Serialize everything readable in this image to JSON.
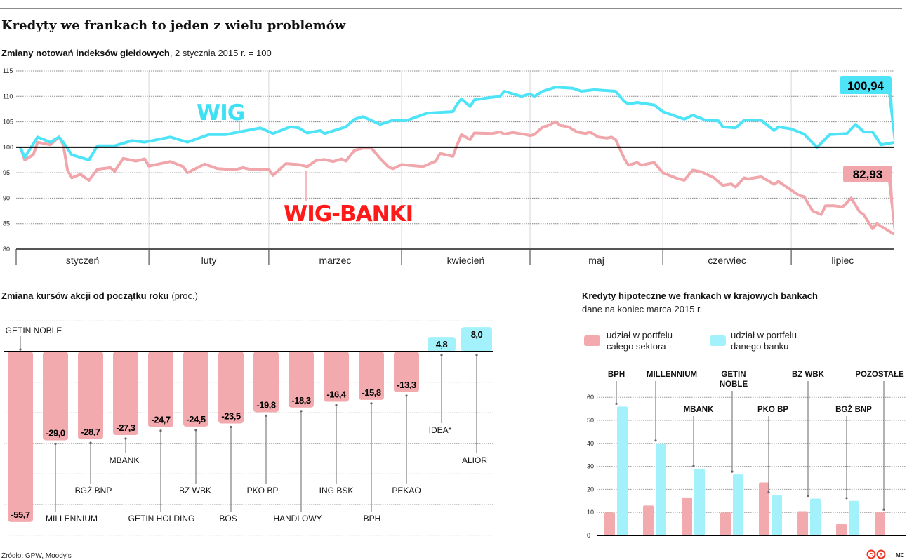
{
  "header": {
    "title": "Kredyty we frankach to jeden z wielu problemów"
  },
  "footer": {
    "source": "Źródło: GPW, Moody's",
    "author": "MC"
  },
  "colors": {
    "wig": "#4ee4f7",
    "wig_banki": "#f0a6aa",
    "wig_label": "#3ee0f4",
    "wig_banki_label": "#ff1a1a",
    "negative": "#f2aaae",
    "positive": "#a3f1fb",
    "sector": "#f2aaae",
    "bank": "#a3f1fb"
  },
  "chart_data": [
    {
      "type": "line",
      "title": "Zmiany notowań indeksów giełdowych",
      "subtitle": ", 2 stycznia 2015 r. = 100",
      "ylim": [
        80,
        115
      ],
      "yticks": [
        80,
        85,
        90,
        95,
        100,
        105,
        110,
        115
      ],
      "baseline": 100,
      "grid": true,
      "x_range": [
        "2015-01-01",
        "2015-07-25"
      ],
      "months": [
        "styczeń",
        "luty",
        "marzec",
        "kwiecień",
        "maj",
        "czerwiec",
        "lipiec"
      ],
      "series": [
        {
          "name": "WIG",
          "end_label": "100,94",
          "points": [
            [
              "2015-01-02",
              100
            ],
            [
              "2015-01-03",
              98
            ],
            [
              "2015-01-06",
              102
            ],
            [
              "2015-01-09",
              101
            ],
            [
              "2015-01-11",
              102
            ],
            [
              "2015-01-12",
              101
            ],
            [
              "2015-01-14",
              98.5
            ],
            [
              "2015-01-18",
              97.5
            ],
            [
              "2015-01-20",
              100.3
            ],
            [
              "2015-01-24",
              100.3
            ],
            [
              "2015-01-28",
              101.3
            ],
            [
              "2015-01-31",
              101
            ],
            [
              "2015-02-06",
              102
            ],
            [
              "2015-02-10",
              101
            ],
            [
              "2015-02-15",
              102.5
            ],
            [
              "2015-02-19",
              102.5
            ],
            [
              "2015-02-22",
              103
            ],
            [
              "2015-02-27",
              103.8
            ],
            [
              "2015-03-02",
              102.7
            ],
            [
              "2015-03-06",
              104
            ],
            [
              "2015-03-08",
              103.8
            ],
            [
              "2015-03-10",
              102.8
            ],
            [
              "2015-03-13",
              103.3
            ],
            [
              "2015-03-14",
              102.7
            ],
            [
              "2015-03-19",
              104
            ],
            [
              "2015-03-21",
              105.5
            ],
            [
              "2015-03-23",
              106
            ],
            [
              "2015-03-27",
              104.5
            ],
            [
              "2015-03-30",
              105.3
            ],
            [
              "2015-04-02",
              105.2
            ],
            [
              "2015-04-07",
              106.7
            ],
            [
              "2015-04-13",
              107
            ],
            [
              "2015-04-14",
              108.5
            ],
            [
              "2015-04-15",
              109.5
            ],
            [
              "2015-04-17",
              108
            ],
            [
              "2015-04-18",
              109.3
            ],
            [
              "2015-04-21",
              109.7
            ],
            [
              "2015-04-24",
              110
            ],
            [
              "2015-04-25",
              111
            ],
            [
              "2015-04-29",
              110
            ],
            [
              "2015-05-01",
              110.5
            ],
            [
              "2015-05-02",
              110
            ],
            [
              "2015-05-04",
              111
            ],
            [
              "2015-05-07",
              111.8
            ],
            [
              "2015-05-11",
              111.6
            ],
            [
              "2015-05-13",
              111
            ],
            [
              "2015-05-16",
              111.3
            ],
            [
              "2015-05-21",
              111
            ],
            [
              "2015-05-23",
              109
            ],
            [
              "2015-05-24",
              108.5
            ],
            [
              "2015-05-26",
              108.8
            ],
            [
              "2015-05-30",
              108.3
            ],
            [
              "2015-06-01",
              107
            ],
            [
              "2015-06-06",
              105.5
            ],
            [
              "2015-06-08",
              106.3
            ],
            [
              "2015-06-11",
              105.3
            ],
            [
              "2015-06-14",
              105.2
            ],
            [
              "2015-06-15",
              104
            ],
            [
              "2015-06-18",
              103.8
            ],
            [
              "2015-06-20",
              105.3
            ],
            [
              "2015-06-24",
              105.3
            ],
            [
              "2015-06-27",
              103.3
            ],
            [
              "2015-06-28",
              104
            ],
            [
              "2015-07-01",
              103.6
            ],
            [
              "2015-07-04",
              102.6
            ],
            [
              "2015-07-07",
              100
            ],
            [
              "2015-07-10",
              102.5
            ],
            [
              "2015-07-14",
              102.7
            ],
            [
              "2015-07-16",
              104.5
            ],
            [
              "2015-07-18",
              103
            ],
            [
              "2015-07-20",
              103
            ],
            [
              "2015-07-22",
              100.5
            ],
            [
              "2015-07-25",
              100.94
            ]
          ]
        },
        {
          "name": "WIG-BANKI",
          "end_label": "82,93",
          "points": [
            [
              "2015-01-02",
              100
            ],
            [
              "2015-01-03",
              97.5
            ],
            [
              "2015-01-05",
              98.5
            ],
            [
              "2015-01-06",
              101
            ],
            [
              "2015-01-09",
              100.5
            ],
            [
              "2015-01-11",
              102
            ],
            [
              "2015-01-12",
              100.5
            ],
            [
              "2015-01-13",
              95.5
            ],
            [
              "2015-01-14",
              94
            ],
            [
              "2015-01-16",
              94.7
            ],
            [
              "2015-01-18",
              93.5
            ],
            [
              "2015-01-20",
              95.7
            ],
            [
              "2015-01-23",
              96
            ],
            [
              "2015-01-24",
              95.3
            ],
            [
              "2015-01-26",
              97.8
            ],
            [
              "2015-01-29",
              97.3
            ],
            [
              "2015-01-31",
              97.7
            ],
            [
              "2015-02-01",
              96.3
            ],
            [
              "2015-02-06",
              97.2
            ],
            [
              "2015-02-09",
              96.2
            ],
            [
              "2015-02-10",
              95
            ],
            [
              "2015-02-14",
              96.7
            ],
            [
              "2015-02-17",
              95.8
            ],
            [
              "2015-02-21",
              95.6
            ],
            [
              "2015-02-23",
              96
            ],
            [
              "2015-02-25",
              95.6
            ],
            [
              "2015-03-01",
              95.7
            ],
            [
              "2015-03-02",
              94.5
            ],
            [
              "2015-03-05",
              96.8
            ],
            [
              "2015-03-08",
              96.6
            ],
            [
              "2015-03-10",
              96.2
            ],
            [
              "2015-03-12",
              97.4
            ],
            [
              "2015-03-14",
              97.6
            ],
            [
              "2015-03-16",
              97.2
            ],
            [
              "2015-03-18",
              97.7
            ],
            [
              "2015-03-19",
              97.3
            ],
            [
              "2015-03-21",
              99.4
            ],
            [
              "2015-03-23",
              99.8
            ],
            [
              "2015-03-25",
              99.8
            ],
            [
              "2015-03-27",
              97.8
            ],
            [
              "2015-03-29",
              96.1
            ],
            [
              "2015-03-30",
              95.8
            ],
            [
              "2015-04-01",
              96.6
            ],
            [
              "2015-04-06",
              96.2
            ],
            [
              "2015-04-09",
              97.3
            ],
            [
              "2015-04-10",
              98.8
            ],
            [
              "2015-04-13",
              98.2
            ],
            [
              "2015-04-14",
              100.5
            ],
            [
              "2015-04-15",
              102.5
            ],
            [
              "2015-04-17",
              101.5
            ],
            [
              "2015-04-18",
              102.8
            ],
            [
              "2015-04-22",
              102.7
            ],
            [
              "2015-04-24",
              103
            ],
            [
              "2015-04-25",
              102.6
            ],
            [
              "2015-04-27",
              102.9
            ],
            [
              "2015-04-30",
              102.5
            ],
            [
              "2015-05-01",
              102.3
            ],
            [
              "2015-05-02",
              102.5
            ],
            [
              "2015-05-04",
              104
            ],
            [
              "2015-05-05",
              104.2
            ],
            [
              "2015-05-07",
              105
            ],
            [
              "2015-05-08",
              104.3
            ],
            [
              "2015-05-10",
              104
            ],
            [
              "2015-05-12",
              103
            ],
            [
              "2015-05-14",
              102.7
            ],
            [
              "2015-05-15",
              103
            ],
            [
              "2015-05-17",
              102
            ],
            [
              "2015-05-19",
              101.8
            ],
            [
              "2015-05-20",
              102
            ],
            [
              "2015-05-21",
              101.5
            ],
            [
              "2015-05-23",
              97.8
            ],
            [
              "2015-05-24",
              96.5
            ],
            [
              "2015-05-26",
              97
            ],
            [
              "2015-05-27",
              96.5
            ],
            [
              "2015-05-30",
              97
            ],
            [
              "2015-06-01",
              95
            ],
            [
              "2015-06-04",
              94
            ],
            [
              "2015-06-06",
              93.5
            ],
            [
              "2015-06-08",
              95.5
            ],
            [
              "2015-06-10",
              95.2
            ],
            [
              "2015-06-13",
              94
            ],
            [
              "2015-06-15",
              92.5
            ],
            [
              "2015-06-17",
              92.8
            ],
            [
              "2015-06-18",
              92.2
            ],
            [
              "2015-06-20",
              94
            ],
            [
              "2015-06-21",
              93.8
            ],
            [
              "2015-06-24",
              94.2
            ],
            [
              "2015-06-27",
              92.7
            ],
            [
              "2015-06-28",
              93.3
            ],
            [
              "2015-07-02",
              91
            ],
            [
              "2015-07-03",
              90.5
            ],
            [
              "2015-07-04",
              90.3
            ],
            [
              "2015-07-06",
              87.5
            ],
            [
              "2015-07-08",
              86.8
            ],
            [
              "2015-07-09",
              88.5
            ],
            [
              "2015-07-11",
              88.5
            ],
            [
              "2015-07-13",
              88.3
            ],
            [
              "2015-07-15",
              90
            ],
            [
              "2015-07-17",
              87.3
            ],
            [
              "2015-07-18",
              86.7
            ],
            [
              "2015-07-20",
              84
            ],
            [
              "2015-07-21",
              85
            ],
            [
              "2015-07-25",
              82.93
            ]
          ]
        }
      ]
    },
    {
      "type": "bar",
      "title": "Zmiana kursów akcji od początku roku",
      "unit": "(proc.)",
      "ylim": [
        -60,
        10
      ],
      "grid": true,
      "categories": [
        "GETIN NOBLE",
        "MILLENNIUM",
        "BGŻ BNP",
        "MBANK",
        "GETIN HOLDING",
        "BZ WBK",
        "BOŚ",
        "PKO BP",
        "HANDLOWY",
        "ING BSK",
        "BPH",
        "PEKAO",
        "IDEA*",
        "ALIOR"
      ],
      "values": [
        -55.7,
        -29.0,
        -28.7,
        -27.3,
        -24.7,
        -24.5,
        -23.5,
        -19.8,
        -18.3,
        -16.4,
        -15.8,
        -13.3,
        4.8,
        8.0
      ]
    },
    {
      "type": "bar",
      "title": "Kredyty hipoteczne we frankach w krajowych bankach",
      "subtitle": "dane na koniec marca 2015 r.",
      "ylim": [
        0,
        60
      ],
      "yticks": [
        0,
        10,
        20,
        30,
        40,
        50,
        60
      ],
      "grid": true,
      "legend_position": "top-left",
      "categories": [
        "BPH",
        "MILLENNIUM",
        "MBANK",
        "GETIN NOBLE",
        "PKO BP",
        "BZ WBK",
        "BGŻ BNP",
        "POZOSTAŁE"
      ],
      "series": [
        {
          "name": "udział w portfelu całego sektora",
          "legend_lines": [
            "udział w portfelu",
            "całego sektora"
          ],
          "values": [
            10,
            13,
            16.5,
            10,
            23,
            10.5,
            5,
            10
          ]
        },
        {
          "name": "udział w portfelu danego banku",
          "legend_lines": [
            "udział w portfelu",
            "danego banku"
          ],
          "values": [
            56,
            40,
            29,
            26.5,
            17.5,
            16,
            15,
            null
          ]
        }
      ]
    }
  ]
}
